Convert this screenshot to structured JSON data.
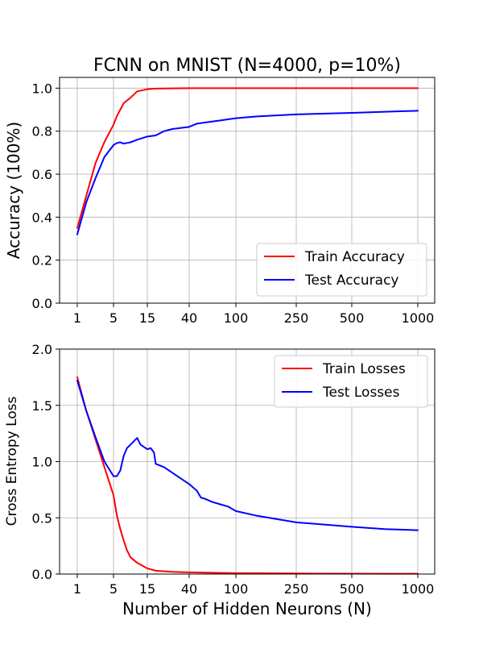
{
  "chart_data": [
    {
      "type": "line",
      "title": "FCNN on MNIST (N=4000, p=10%)",
      "xlabel": "",
      "ylabel": "Accuracy (100%)",
      "x_scale": "custom-nonuniform",
      "x_ticks": [
        1,
        5,
        15,
        40,
        100,
        250,
        500,
        1000
      ],
      "x_tick_labels": [
        "1",
        "5",
        "15",
        "40",
        "100",
        "250",
        "500",
        "1000"
      ],
      "ylim": [
        0.0,
        1.05
      ],
      "y_ticks": [
        0.0,
        0.2,
        0.4,
        0.6,
        0.8,
        1.0
      ],
      "y_tick_labels": [
        "0.0",
        "0.2",
        "0.4",
        "0.6",
        "0.8",
        "1.0"
      ],
      "grid": true,
      "legend_position": "lower-right",
      "series": [
        {
          "name": "Train Accuracy",
          "color": "#ff0000",
          "points": [
            [
              1,
              0.35
            ],
            [
              2,
              0.5
            ],
            [
              3,
              0.65
            ],
            [
              4,
              0.75
            ],
            [
              5,
              0.83
            ],
            [
              6,
              0.87
            ],
            [
              7,
              0.9
            ],
            [
              8,
              0.93
            ],
            [
              10,
              0.955
            ],
            [
              12,
              0.985
            ],
            [
              15,
              0.995
            ],
            [
              20,
              0.998
            ],
            [
              30,
              0.999
            ],
            [
              40,
              1.0
            ],
            [
              100,
              1.0
            ],
            [
              250,
              1.0
            ],
            [
              500,
              1.0
            ],
            [
              1000,
              1.0
            ]
          ]
        },
        {
          "name": "Test Accuracy",
          "color": "#0000ff",
          "points": [
            [
              1,
              0.32
            ],
            [
              2,
              0.47
            ],
            [
              3,
              0.58
            ],
            [
              4,
              0.68
            ],
            [
              5,
              0.735
            ],
            [
              6,
              0.745
            ],
            [
              7,
              0.748
            ],
            [
              8,
              0.742
            ],
            [
              9,
              0.745
            ],
            [
              10,
              0.748
            ],
            [
              12,
              0.76
            ],
            [
              15,
              0.775
            ],
            [
              20,
              0.78
            ],
            [
              25,
              0.8
            ],
            [
              30,
              0.81
            ],
            [
              40,
              0.82
            ],
            [
              50,
              0.835
            ],
            [
              60,
              0.84
            ],
            [
              80,
              0.85
            ],
            [
              100,
              0.86
            ],
            [
              150,
              0.868
            ],
            [
              250,
              0.878
            ],
            [
              500,
              0.885
            ],
            [
              750,
              0.89
            ],
            [
              1000,
              0.895
            ]
          ]
        }
      ]
    },
    {
      "type": "line",
      "title": "",
      "xlabel": "Number of Hidden Neurons (N)",
      "ylabel": "Cross Entropy Loss",
      "x_scale": "custom-nonuniform",
      "x_ticks": [
        1,
        5,
        15,
        40,
        100,
        250,
        500,
        1000
      ],
      "x_tick_labels": [
        "1",
        "5",
        "15",
        "40",
        "100",
        "250",
        "500",
        "1000"
      ],
      "ylim": [
        0.0,
        2.0
      ],
      "y_ticks": [
        0.0,
        0.5,
        1.0,
        1.5,
        2.0
      ],
      "y_tick_labels": [
        "0.0",
        "0.5",
        "1.0",
        "1.5",
        "2.0"
      ],
      "grid": true,
      "legend_position": "upper-right",
      "series": [
        {
          "name": "Train Losses",
          "color": "#ff0000",
          "points": [
            [
              1,
              1.75
            ],
            [
              2,
              1.45
            ],
            [
              3,
              1.2
            ],
            [
              4,
              0.95
            ],
            [
              5,
              0.7
            ],
            [
              6,
              0.52
            ],
            [
              7,
              0.4
            ],
            [
              8,
              0.3
            ],
            [
              9,
              0.21
            ],
            [
              10,
              0.15
            ],
            [
              12,
              0.1
            ],
            [
              15,
              0.05
            ],
            [
              20,
              0.03
            ],
            [
              30,
              0.02
            ],
            [
              40,
              0.015
            ],
            [
              100,
              0.008
            ],
            [
              250,
              0.005
            ],
            [
              500,
              0.004
            ],
            [
              1000,
              0.003
            ]
          ]
        },
        {
          "name": "Test Losses",
          "color": "#0000ff",
          "points": [
            [
              1,
              1.72
            ],
            [
              2,
              1.45
            ],
            [
              3,
              1.22
            ],
            [
              4,
              1.0
            ],
            [
              5,
              0.87
            ],
            [
              6,
              0.87
            ],
            [
              7,
              0.92
            ],
            [
              8,
              1.05
            ],
            [
              9,
              1.12
            ],
            [
              10,
              1.15
            ],
            [
              12,
              1.21
            ],
            [
              13,
              1.15
            ],
            [
              15,
              1.11
            ],
            [
              17,
              1.12
            ],
            [
              19,
              1.08
            ],
            [
              20,
              0.98
            ],
            [
              25,
              0.95
            ],
            [
              30,
              0.9
            ],
            [
              35,
              0.85
            ],
            [
              40,
              0.8
            ],
            [
              50,
              0.74
            ],
            [
              55,
              0.68
            ],
            [
              60,
              0.67
            ],
            [
              70,
              0.64
            ],
            [
              80,
              0.62
            ],
            [
              90,
              0.6
            ],
            [
              100,
              0.56
            ],
            [
              150,
              0.52
            ],
            [
              250,
              0.46
            ],
            [
              500,
              0.42
            ],
            [
              750,
              0.4
            ],
            [
              1000,
              0.39
            ]
          ]
        }
      ]
    }
  ]
}
